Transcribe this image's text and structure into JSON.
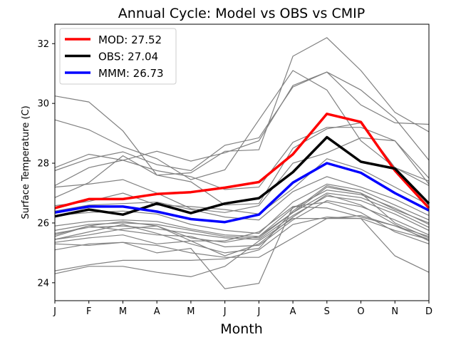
{
  "chart_data": {
    "type": "line",
    "title": "Annual Cycle: Model vs OBS vs CMIP",
    "xlabel": "Month",
    "ylabel": "Surface Temperature (C)",
    "categories": [
      "J",
      "F",
      "M",
      "A",
      "M",
      "J",
      "J",
      "A",
      "S",
      "O",
      "N",
      "D"
    ],
    "ylim": [
      23.4,
      32.65
    ],
    "yticks": [
      24,
      26,
      28,
      30,
      32
    ],
    "legend_position": "top-left",
    "colors": {
      "mod": "#ff0000",
      "obs": "#000000",
      "mmm": "#0000ff",
      "ensemble": "#808080"
    },
    "series": [
      {
        "name": "MOD",
        "legend": "MOD: 27.52",
        "color": "#ff0000",
        "values": [
          26.5,
          26.8,
          26.8,
          26.97,
          27.03,
          27.18,
          27.37,
          28.3,
          29.65,
          29.38,
          27.75,
          26.5
        ]
      },
      {
        "name": "OBS",
        "legend": "OBS: 27.04",
        "color": "#000000",
        "values": [
          26.22,
          26.45,
          26.28,
          26.65,
          26.33,
          26.65,
          26.83,
          27.7,
          28.87,
          28.05,
          27.82,
          26.65
        ]
      },
      {
        "name": "MMM",
        "legend": "MMM: 26.73",
        "color": "#0000ff",
        "values": [
          26.35,
          26.55,
          26.55,
          26.38,
          26.13,
          26.03,
          26.28,
          27.35,
          28.0,
          27.68,
          27.0,
          26.42
        ]
      }
    ],
    "ensemble": [
      [
        30.25,
        30.05,
        29.08,
        27.6,
        27.68,
        28.4,
        28.45,
        31.58,
        32.2,
        31.1,
        29.7,
        29.05
      ],
      [
        29.45,
        29.12,
        28.55,
        28.15,
        27.45,
        27.78,
        29.45,
        31.1,
        30.45,
        28.75,
        27.85,
        27.25
      ],
      [
        27.85,
        28.3,
        28.1,
        28.4,
        28.07,
        28.35,
        28.75,
        30.6,
        31.05,
        29.95,
        29.35,
        29.3
      ],
      [
        27.75,
        28.15,
        28.38,
        27.95,
        27.75,
        28.6,
        28.85,
        30.55,
        31.05,
        30.45,
        29.5,
        28.1
      ],
      [
        27.25,
        27.85,
        28.1,
        27.75,
        27.55,
        27.12,
        27.2,
        28.7,
        29.2,
        29.2,
        28.75,
        27.5
      ],
      [
        26.85,
        27.35,
        28.25,
        27.6,
        27.38,
        26.6,
        26.65,
        28.5,
        29.15,
        29.35,
        27.85,
        27.4
      ],
      [
        27.2,
        27.3,
        27.45,
        27.0,
        26.48,
        26.35,
        26.58,
        28.0,
        28.35,
        28.85,
        28.75,
        27.3
      ],
      [
        26.58,
        26.72,
        27.0,
        26.6,
        26.55,
        26.45,
        26.3,
        27.15,
        28.15,
        27.8,
        27.2,
        26.6
      ],
      [
        26.4,
        26.6,
        26.65,
        26.7,
        26.45,
        26.2,
        26.1,
        27.05,
        27.55,
        27.2,
        26.8,
        26.25
      ],
      [
        26.25,
        26.35,
        26.4,
        26.3,
        25.95,
        25.75,
        25.65,
        26.7,
        27.3,
        27.1,
        26.6,
        26.1
      ],
      [
        25.9,
        26.05,
        26.1,
        26.05,
        25.8,
        25.6,
        25.55,
        26.5,
        27.1,
        26.95,
        26.5,
        25.95
      ],
      [
        25.75,
        25.95,
        26.0,
        25.95,
        25.75,
        25.55,
        25.5,
        26.35,
        27.0,
        26.85,
        26.4,
        25.85
      ],
      [
        25.65,
        25.85,
        25.9,
        25.8,
        25.65,
        25.5,
        25.45,
        26.25,
        26.9,
        26.75,
        26.3,
        25.75
      ],
      [
        25.55,
        25.9,
        25.75,
        25.6,
        25.55,
        25.2,
        25.25,
        26.1,
        26.75,
        26.55,
        26.1,
        25.6
      ],
      [
        25.45,
        25.7,
        25.95,
        25.65,
        25.3,
        25.0,
        25.15,
        26.4,
        27.25,
        27.0,
        26.0,
        25.5
      ],
      [
        25.45,
        25.6,
        25.8,
        25.9,
        25.4,
        24.9,
        25.3,
        26.2,
        26.95,
        26.6,
        25.95,
        25.4
      ],
      [
        25.35,
        25.5,
        25.6,
        25.3,
        25.4,
        25.4,
        25.7,
        26.55,
        26.5,
        26.2,
        25.9,
        25.55
      ],
      [
        25.3,
        25.25,
        25.35,
        25.25,
        25.0,
        24.85,
        24.85,
        25.5,
        26.15,
        26.15,
        25.75,
        25.45
      ],
      [
        25.1,
        25.3,
        25.35,
        25.0,
        25.15,
        23.8,
        23.98,
        26.55,
        26.7,
        26.35,
        25.7,
        25.3
      ],
      [
        24.4,
        24.6,
        24.75,
        24.75,
        24.75,
        24.8,
        25.1,
        25.95,
        26.2,
        26.15,
        24.9,
        24.35
      ],
      [
        24.3,
        24.55,
        24.55,
        24.35,
        24.2,
        24.55,
        25.4,
        26.15,
        26.15,
        26.25,
        25.9,
        25.45
      ],
      [
        25.6,
        25.9,
        26.05,
        25.9,
        25.5,
        25.35,
        25.55,
        26.35,
        27.2,
        27.0,
        26.45,
        26.0
      ]
    ]
  }
}
